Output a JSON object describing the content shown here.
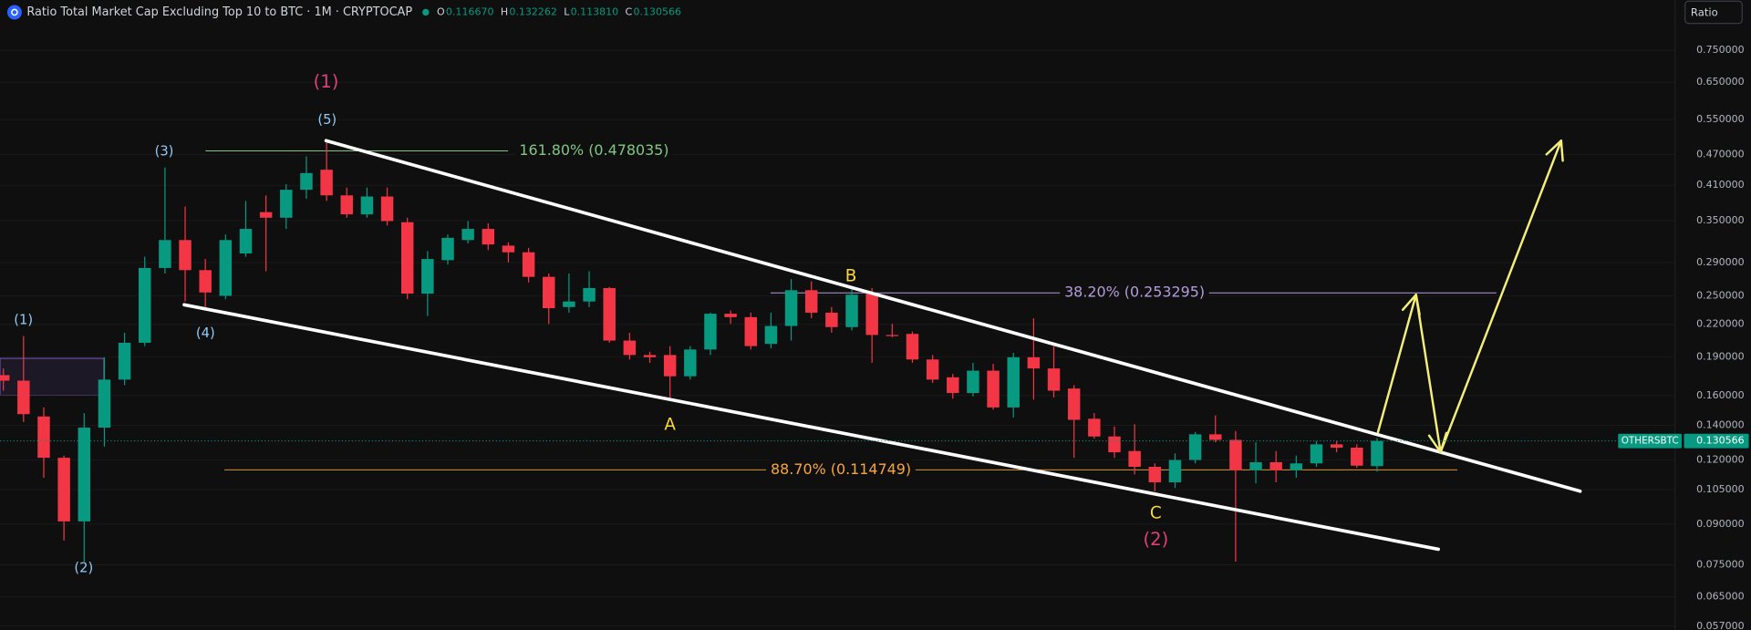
{
  "chart_data": {
    "type": "candlestick",
    "title": "Ratio Total Market Cap Excluding Top 10 to BTC · 1M · CRYPTOCAP",
    "ohlc_legend": [
      {
        "key": "O",
        "value": 0.11667,
        "label": "0.116670"
      },
      {
        "key": "H",
        "value": 0.132262,
        "label": "0.132262"
      },
      {
        "key": "L",
        "value": 0.11381,
        "label": "0.113810"
      },
      {
        "key": "C",
        "value": 0.130566,
        "label": "0.130566"
      }
    ],
    "symbol": "OTHERSBTC",
    "scale_button": "Ratio",
    "up_color": "#089981",
    "down_color": "#f23645",
    "log_scale": true,
    "grid": true,
    "ylim": [
      0.05604,
      0.939
    ],
    "yticks": [
      {
        "value": 0.75,
        "label": "0.750000"
      },
      {
        "value": 0.65,
        "label": "0.650000"
      },
      {
        "value": 0.55,
        "label": "0.550000"
      },
      {
        "value": 0.47,
        "label": "0.470000"
      },
      {
        "value": 0.41,
        "label": "0.410000"
      },
      {
        "value": 0.35,
        "label": "0.350000"
      },
      {
        "value": 0.29,
        "label": "0.290000"
      },
      {
        "value": 0.25,
        "label": "0.250000"
      },
      {
        "value": 0.22,
        "label": "0.220000"
      },
      {
        "value": 0.19,
        "label": "0.190000"
      },
      {
        "value": 0.16,
        "label": "0.160000"
      },
      {
        "value": 0.14,
        "label": "0.140000"
      },
      {
        "value": 0.12,
        "label": "0.120000"
      },
      {
        "value": 0.105,
        "label": "0.105000"
      },
      {
        "value": 0.09,
        "label": "0.090000"
      },
      {
        "value": 0.075,
        "label": "0.075000"
      },
      {
        "value": 0.065,
        "label": "0.065000"
      },
      {
        "value": 0.057,
        "label": "0.057000"
      }
    ],
    "open": [
      0.1753,
      0.171,
      0.1457,
      0.1211,
      0.0911,
      0.1386,
      0.1718,
      0.2026,
      0.2831,
      0.3208,
      0.2804,
      0.2499,
      0.3021,
      0.3635,
      0.3545,
      0.4017,
      0.4394,
      0.3918,
      0.3599,
      0.3898,
      0.3475,
      0.2524,
      0.2932,
      0.3208,
      0.3372,
      0.3129,
      0.3037,
      0.2721,
      0.2377,
      0.2437,
      0.2588,
      0.2046,
      0.1918,
      0.1918,
      0.1744,
      0.1966,
      0.2307,
      0.2272,
      0.2016,
      0.2184,
      0.2563,
      0.2318,
      0.2173,
      0.2524,
      0.2098,
      0.2108,
      0.188,
      0.1736,
      0.1618,
      0.1788,
      0.1517,
      0.1899,
      0.1806,
      0.1651,
      0.1442,
      0.1332,
      0.1248,
      0.1163,
      0.1085,
      0.1199,
      0.1345,
      0.1312,
      0.1146,
      0.1187,
      0.1146,
      0.1181,
      0.1286,
      0.1267,
      0.11667
    ],
    "high": [
      0.1806,
      0.2088,
      0.1517,
      0.1223,
      0.1479,
      0.1899,
      0.2119,
      0.2977,
      0.4439,
      0.3727,
      0.2947,
      0.3289,
      0.3821,
      0.3918,
      0.4118,
      0.4666,
      0.4954,
      0.4057,
      0.4057,
      0.4057,
      0.3545,
      0.3052,
      0.3289,
      0.3492,
      0.3457,
      0.3176,
      0.3098,
      0.2762,
      0.2762,
      0.279,
      0.2601,
      0.2119,
      0.1946,
      0.1996,
      0.1996,
      0.2318,
      0.2341,
      0.2318,
      0.2318,
      0.2694,
      0.2667,
      0.2377,
      0.2588,
      0.2588,
      0.2205,
      0.213,
      0.1918,
      0.1762,
      0.1852,
      0.1843,
      0.1937,
      0.2261,
      0.1996,
      0.1676,
      0.1479,
      0.1393,
      0.1407,
      0.1181,
      0.1235,
      0.1359,
      0.1464,
      0.1365,
      0.1298,
      0.1248,
      0.1223,
      0.1305,
      0.1305,
      0.1286,
      0.132262
    ],
    "low": [
      0.1635,
      0.1421,
      0.1107,
      0.0836,
      0.0761,
      0.1273,
      0.1676,
      0.1996,
      0.2762,
      0.2437,
      0.2377,
      0.2462,
      0.2977,
      0.279,
      0.3372,
      0.386,
      0.3821,
      0.3545,
      0.3545,
      0.3423,
      0.2462,
      0.2284,
      0.2874,
      0.316,
      0.3067,
      0.2903,
      0.2654,
      0.2205,
      0.2318,
      0.2377,
      0.2026,
      0.188,
      0.1852,
      0.1578,
      0.1718,
      0.1918,
      0.2205,
      0.1966,
      0.1976,
      0.2046,
      0.2261,
      0.2119,
      0.214,
      0.1852,
      0.2077,
      0.1852,
      0.1693,
      0.1578,
      0.1594,
      0.1502,
      0.145,
      0.1571,
      0.1586,
      0.1211,
      0.1319,
      0.1211,
      0.1124,
      0.1042,
      0.1058,
      0.1181,
      0.1298,
      0.0761,
      0.108,
      0.1085,
      0.1107,
      0.1163,
      0.1241,
      0.1158,
      0.11381
    ],
    "close": [
      0.171,
      0.1472,
      0.1211,
      0.0911,
      0.1386,
      0.1718,
      0.2026,
      0.2831,
      0.3208,
      0.2804,
      0.2537,
      0.3208,
      0.3372,
      0.3545,
      0.4017,
      0.4329,
      0.3918,
      0.3599,
      0.3898,
      0.3492,
      0.2524,
      0.2947,
      0.324,
      0.3372,
      0.3145,
      0.3037,
      0.2721,
      0.2365,
      0.2437,
      0.2588,
      0.2046,
      0.1918,
      0.1899,
      0.1744,
      0.1966,
      0.2307,
      0.2272,
      0.1996,
      0.2184,
      0.2563,
      0.2318,
      0.2173,
      0.2512,
      0.2098,
      0.2088,
      0.188,
      0.1718,
      0.1618,
      0.1788,
      0.1517,
      0.1899,
      0.1806,
      0.1635,
      0.1435,
      0.1332,
      0.1241,
      0.1163,
      0.1085,
      0.1199,
      0.1345,
      0.1312,
      0.1146,
      0.1187,
      0.1146,
      0.1181,
      0.1286,
      0.1267,
      0.1169,
      0.130566
    ],
    "fib_levels": [
      {
        "label": "161.80% (0.478035)",
        "value": 0.478035,
        "color": "#81c784"
      },
      {
        "label": "38.20% (0.253295)",
        "value": 0.253295,
        "color": "#b39ddb"
      },
      {
        "label": "88.70% (0.114749)",
        "value": 0.114749,
        "color": "#f7a541"
      }
    ],
    "wave_labels": [
      {
        "text": "(1)",
        "color": "#e0407a"
      },
      {
        "text": "(5)",
        "color": "#90caf9"
      },
      {
        "text": "(3)",
        "color": "#90caf9"
      },
      {
        "text": "(1)",
        "color": "#90caf9"
      },
      {
        "text": "(4)",
        "color": "#90caf9"
      },
      {
        "text": "(2)",
        "color": "#90caf9"
      },
      {
        "text": "A",
        "color": "#fdd835"
      },
      {
        "text": "B",
        "color": "#fdd835"
      },
      {
        "text": "C",
        "color": "#fdd835"
      },
      {
        "text": "(2)",
        "color": "#e0407a"
      }
    ]
  }
}
